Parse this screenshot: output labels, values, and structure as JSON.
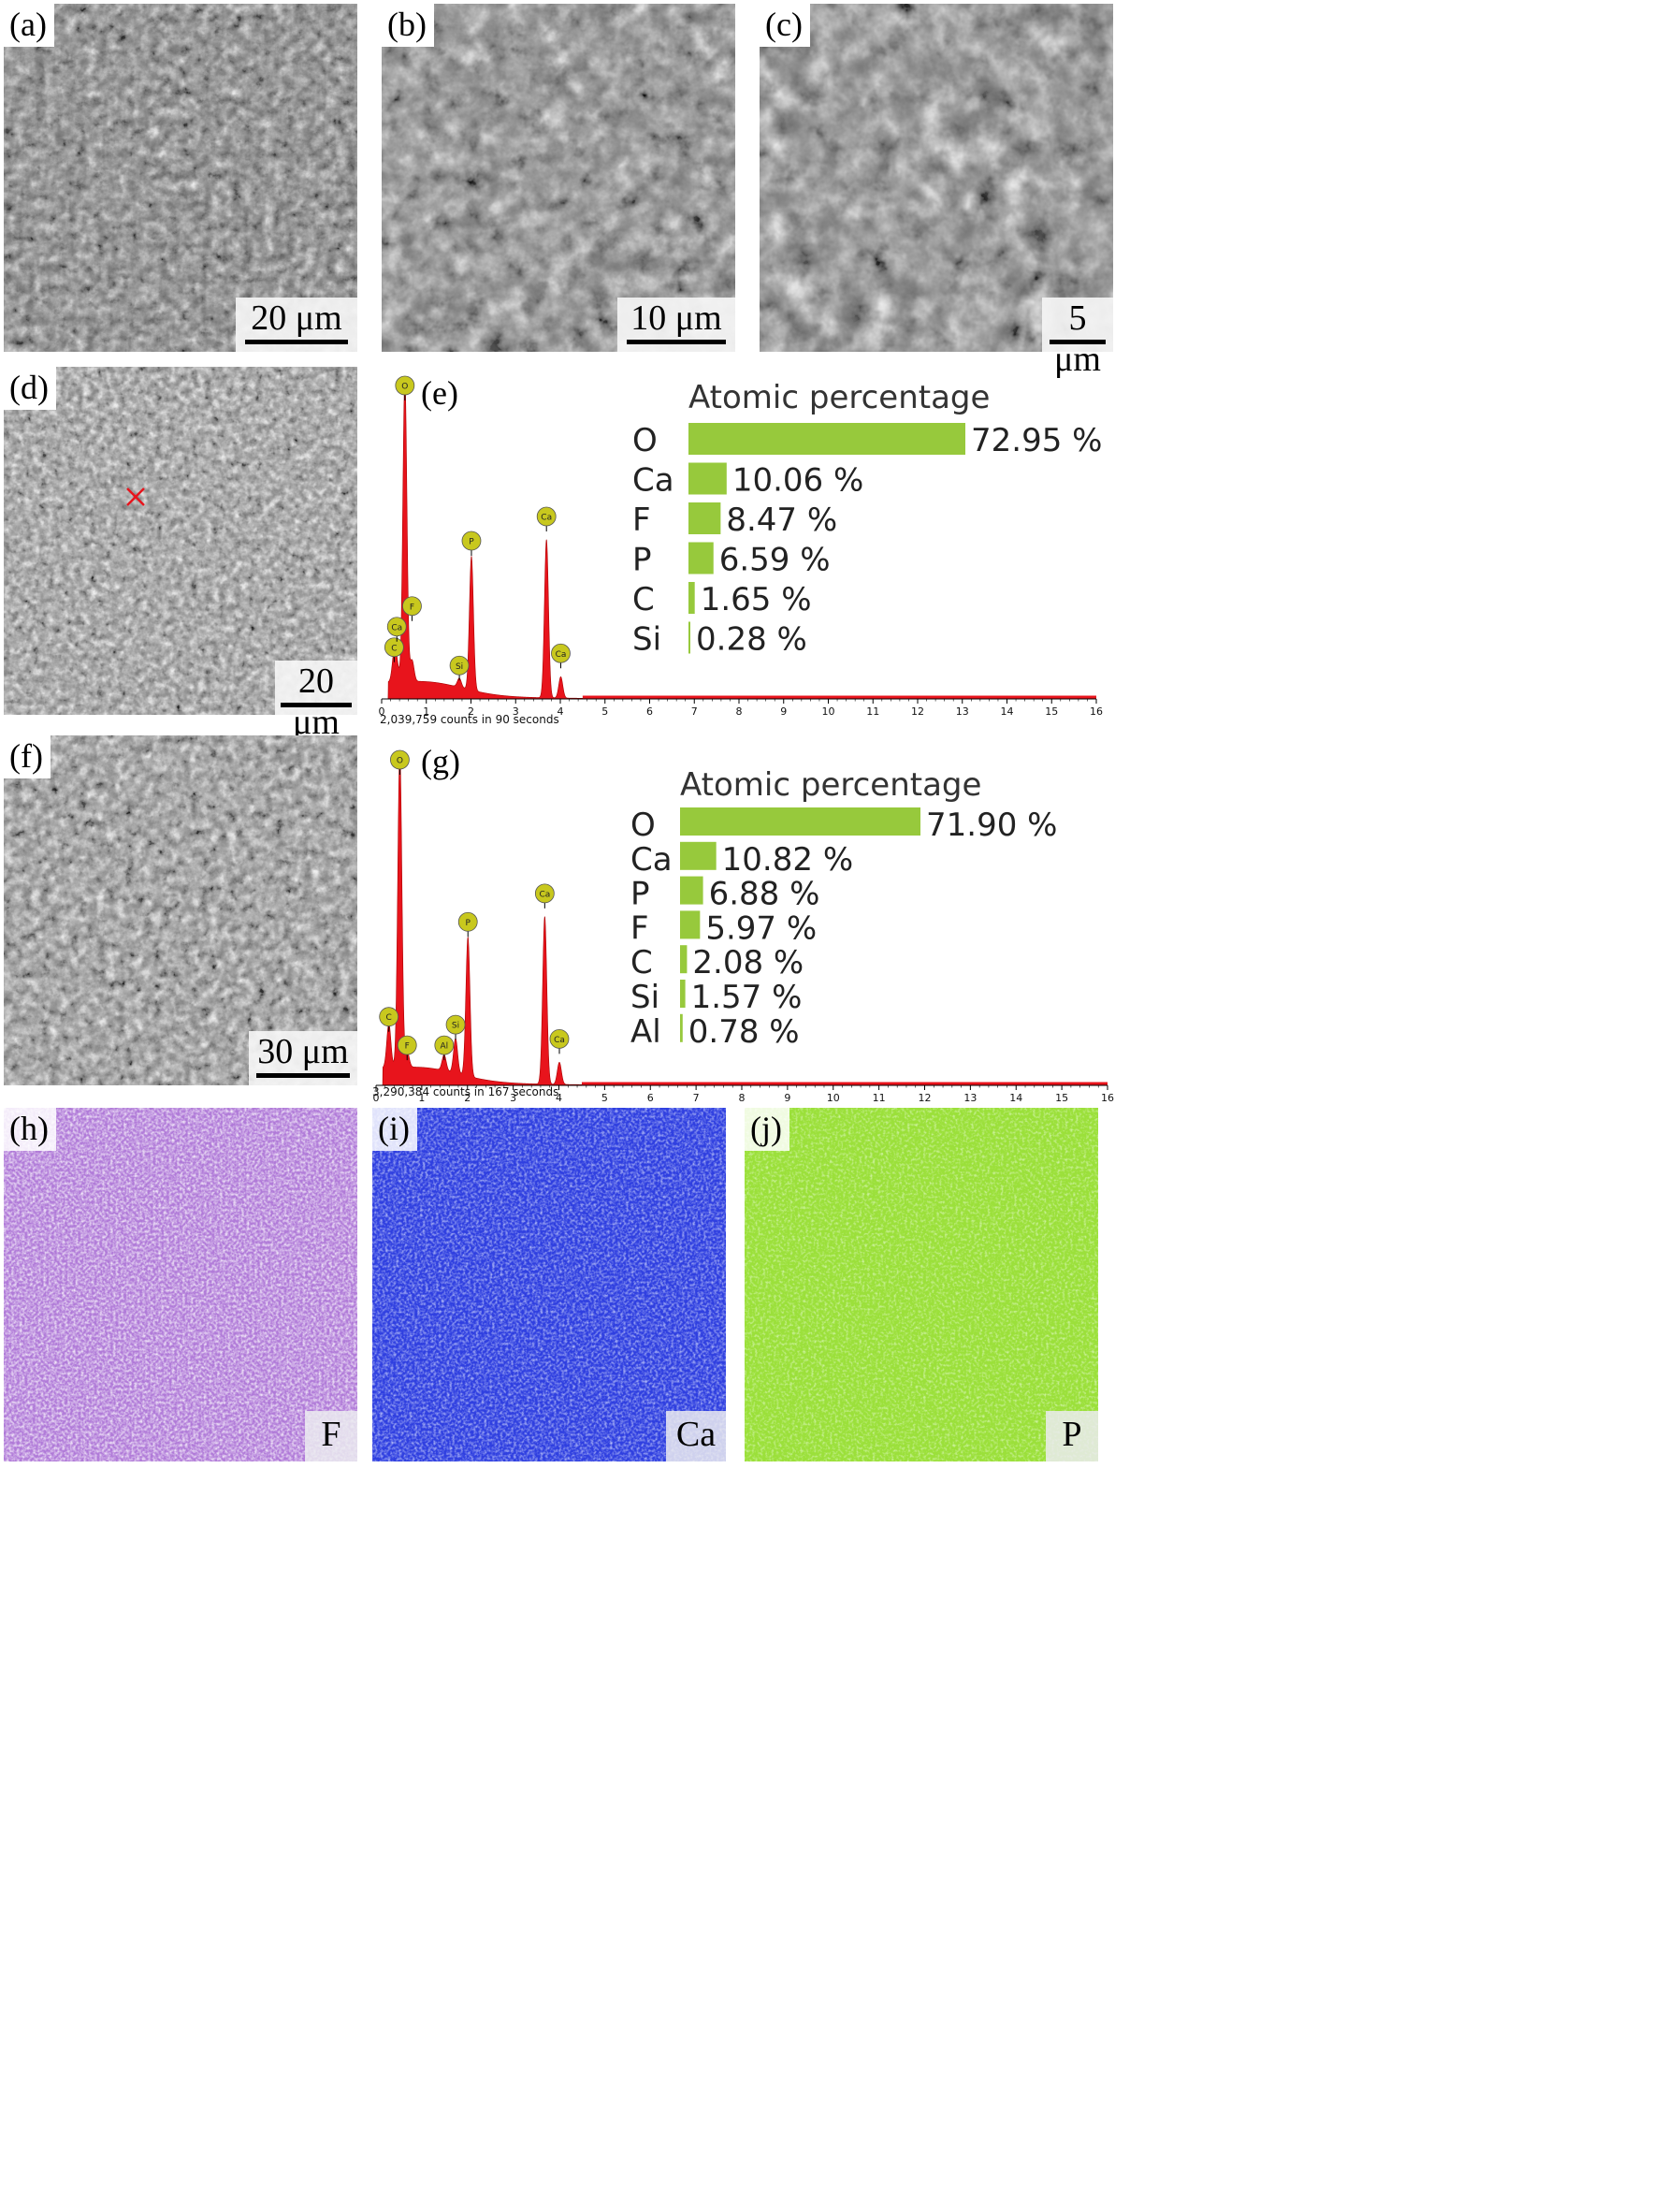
{
  "panels": {
    "a": {
      "label": "(a)",
      "scale": "20 μm"
    },
    "b": {
      "label": "(b)",
      "scale": "10 μm"
    },
    "c": {
      "label": "(c)",
      "scale": "5 μm"
    },
    "d": {
      "label": "(d)",
      "scale": "20 μm"
    },
    "e": {
      "label": "(e)"
    },
    "f": {
      "label": "(f)",
      "scale": "30 μm"
    },
    "g": {
      "label": "(g)"
    },
    "h": {
      "label": "(h)",
      "element": "F"
    },
    "i": {
      "label": "(i)",
      "element": "Ca"
    },
    "j": {
      "label": "(j)",
      "element": "P"
    }
  },
  "colors": {
    "spectrum_fill": "#e8141c",
    "peak_marker": "#c8c81e",
    "bar": "#97c93c",
    "map_F": "#b07ad8",
    "map_Ca": "#2f3fe0",
    "map_P": "#9be03a"
  },
  "chart_data": [
    {
      "type": "area",
      "panel": "e",
      "xlim": [
        0,
        16
      ],
      "x_ticks": [
        "0",
        "1",
        "2",
        "3",
        "4",
        "5",
        "6",
        "7",
        "8",
        "9",
        "10",
        "11",
        "12",
        "13",
        "14",
        "15",
        "16"
      ],
      "counts_note": "2,039,759 counts in 90 seconds",
      "peaks": [
        {
          "label": "C",
          "x": 0.28,
          "height": 0.09
        },
        {
          "label": "Ca",
          "x": 0.34,
          "height": 0.05
        },
        {
          "label": "O",
          "x": 0.52,
          "height": 1.0
        },
        {
          "label": "F",
          "x": 0.68,
          "height": 0.07
        },
        {
          "label": "Si",
          "x": 1.74,
          "height": 0.03
        },
        {
          "label": "P",
          "x": 2.01,
          "height": 0.44
        },
        {
          "label": "Ca",
          "x": 3.69,
          "height": 0.52
        },
        {
          "label": "Ca",
          "x": 4.01,
          "height": 0.07
        }
      ]
    },
    {
      "type": "bar",
      "panel": "e",
      "title": "Atomic percentage",
      "categories": [
        "O",
        "Ca",
        "F",
        "P",
        "C",
        "Si"
      ],
      "values": [
        72.95,
        10.06,
        8.47,
        6.59,
        1.65,
        0.28
      ],
      "labels": [
        "72.95 %",
        "10.06 %",
        "8.47 %",
        "6.59 %",
        "1.65 %",
        "0.28 %"
      ]
    },
    {
      "type": "area",
      "panel": "g",
      "xlim": [
        0,
        16
      ],
      "x_ticks": [
        "0",
        "1",
        "2",
        "3",
        "4",
        "5",
        "6",
        "7",
        "8",
        "9",
        "10",
        "11",
        "12",
        "13",
        "14",
        "15",
        "16"
      ],
      "counts_note": "3,290,384 counts in 167 seconds",
      "peaks": [
        {
          "label": "C",
          "x": 0.28,
          "height": 0.14
        },
        {
          "label": "O",
          "x": 0.52,
          "height": 1.0
        },
        {
          "label": "F",
          "x": 0.68,
          "height": 0.05
        },
        {
          "label": "Al",
          "x": 1.49,
          "height": 0.05
        },
        {
          "label": "Si",
          "x": 1.74,
          "height": 0.11
        },
        {
          "label": "P",
          "x": 2.01,
          "height": 0.44
        },
        {
          "label": "Ca",
          "x": 3.69,
          "height": 0.53
        },
        {
          "label": "Ca",
          "x": 4.01,
          "height": 0.07
        }
      ]
    },
    {
      "type": "bar",
      "panel": "g",
      "title": "Atomic percentage",
      "categories": [
        "O",
        "Ca",
        "P",
        "F",
        "C",
        "Si",
        "Al"
      ],
      "values": [
        71.9,
        10.82,
        6.88,
        5.97,
        2.08,
        1.57,
        0.78
      ],
      "labels": [
        "71.90 %",
        "10.82 %",
        "6.88 %",
        "5.97 %",
        "2.08 %",
        "1.57 %",
        "0.78 %"
      ]
    }
  ]
}
